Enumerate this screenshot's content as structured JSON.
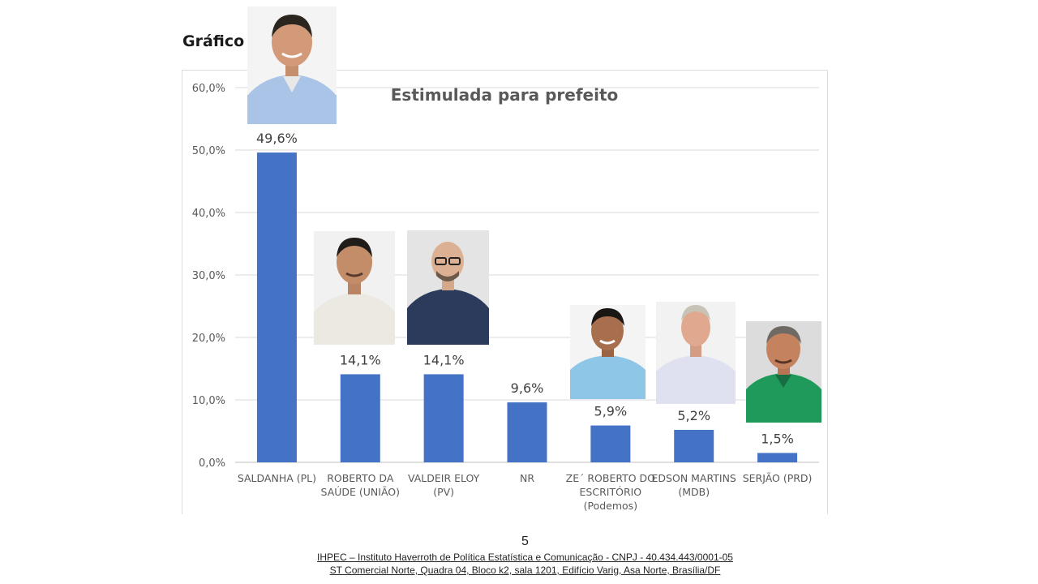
{
  "heading": "Gráfico 01",
  "page_number": "5",
  "footer": {
    "line1": "IHPEC – Instituto Haverroth de Política Estatística e Comunicação - CNPJ - 40.434.443/0001-05",
    "line2": "ST Comercial Norte, Quadra 04, Bloco k2, sala 1201, Edifício Varig, Asa Norte, Brasília/DF"
  },
  "colors": {
    "bar": "#4472c4",
    "grid": "#d9d9d9",
    "text": "#595959"
  },
  "chart_data": {
    "type": "bar",
    "title": "Estimulada para prefeito",
    "xlabel": "",
    "ylabel": "",
    "ylim": [
      0,
      60
    ],
    "yticks": [
      "0,0%",
      "10,0%",
      "20,0%",
      "30,0%",
      "40,0%",
      "50,0%",
      "60,0%"
    ],
    "grid": true,
    "categories": [
      [
        "SALDANHA (PL)"
      ],
      [
        "ROBERTO DA",
        "SAÚDE (UNIÃO)"
      ],
      [
        "VALDEIR ELOY",
        "(PV)"
      ],
      [
        "NR"
      ],
      [
        "ZE´ ROBERTO DO",
        "ESCRITÓRIO",
        "(Podemos)"
      ],
      [
        "EDSON MARTINS",
        "(MDB)"
      ],
      [
        "SERJÃO (PRD)"
      ]
    ],
    "values": [
      49.6,
      14.1,
      14.1,
      9.6,
      5.9,
      5.2,
      1.5
    ],
    "data_labels": [
      "49,6%",
      "14,1%",
      "14,1%",
      "9,6%",
      "5,9%",
      "5,2%",
      "1,5%"
    ]
  }
}
